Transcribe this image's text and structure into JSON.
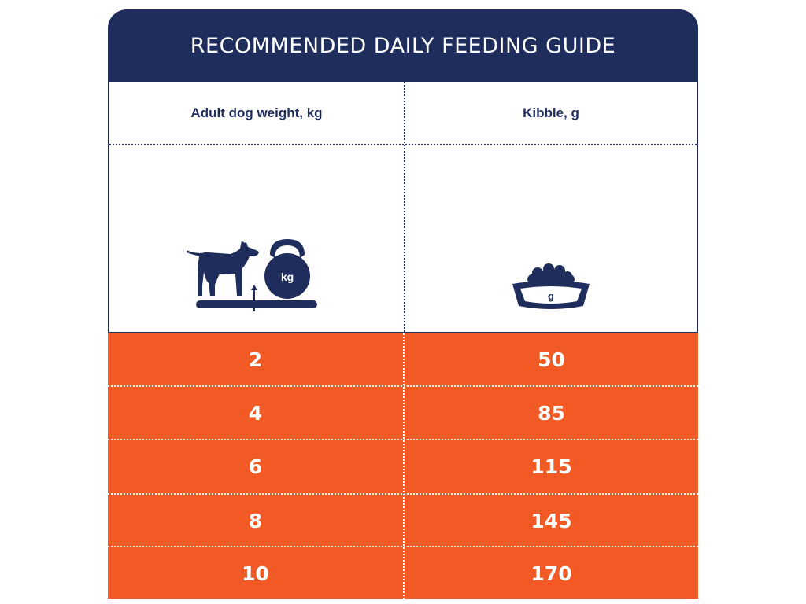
{
  "title": "RECOMMENDED DAILY FEEDING GUIDE",
  "columns": {
    "weight": "Adult dog weight, kg",
    "kibble": "Kibble, g"
  },
  "icons": {
    "weight": {
      "name": "dog-on-scale-kettlebell-icon",
      "label": "kg"
    },
    "kibble": {
      "name": "kibble-bowl-icon",
      "label": "g"
    }
  },
  "rows": [
    {
      "weight": "2",
      "kibble": "50"
    },
    {
      "weight": "4",
      "kibble": "85"
    },
    {
      "weight": "6",
      "kibble": "115"
    },
    {
      "weight": "8",
      "kibble": "145"
    },
    {
      "weight": "10",
      "kibble": "170"
    }
  ],
  "colors": {
    "navy": "#1f2d5c",
    "orange": "#f15a25"
  }
}
